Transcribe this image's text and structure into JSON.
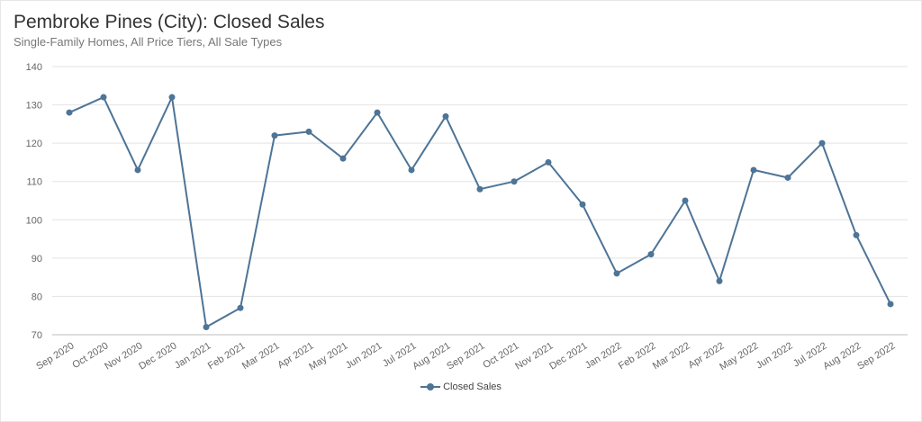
{
  "chart_data": {
    "type": "line",
    "title": "Pembroke Pines (City): Closed Sales",
    "subtitle": "Single-Family Homes, All Price Tiers, All Sale Types",
    "xlabel": "",
    "ylabel": "",
    "ylim": [
      70,
      140
    ],
    "yticks": [
      70,
      80,
      90,
      100,
      110,
      120,
      130,
      140
    ],
    "grid": true,
    "legend_position": "bottom",
    "categories": [
      "Sep 2020",
      "Oct 2020",
      "Nov 2020",
      "Dec 2020",
      "Jan 2021",
      "Feb 2021",
      "Mar 2021",
      "Apr 2021",
      "May 2021",
      "Jun 2021",
      "Jul 2021",
      "Aug 2021",
      "Sep 2021",
      "Oct 2021",
      "Nov 2021",
      "Dec 2021",
      "Jan 2022",
      "Feb 2022",
      "Mar 2022",
      "Apr 2022",
      "May 2022",
      "Jun 2022",
      "Jul 2022",
      "Aug 2022",
      "Sep 2022"
    ],
    "series": [
      {
        "name": "Closed Sales",
        "color": "#4e7496",
        "values": [
          128,
          132,
          113,
          132,
          72,
          77,
          122,
          123,
          116,
          128,
          113,
          127,
          108,
          110,
          115,
          104,
          86,
          91,
          105,
          84,
          113,
          111,
          120,
          96,
          78
        ]
      }
    ]
  }
}
